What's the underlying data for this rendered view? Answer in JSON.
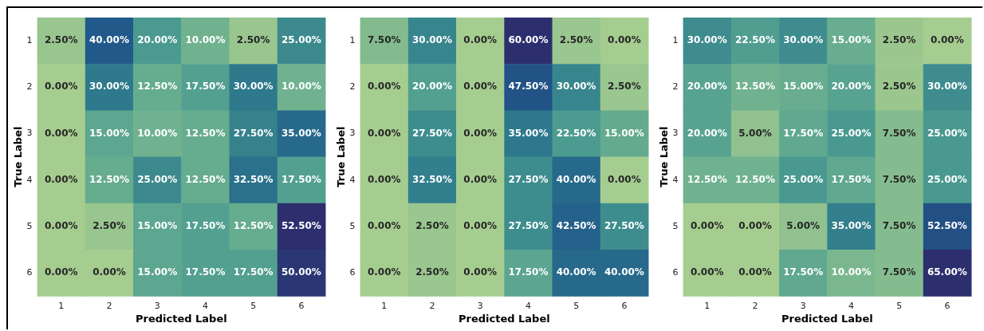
{
  "chart_data": [
    {
      "type": "heatmap",
      "xlabel": "Predicted Label",
      "ylabel": "True Label",
      "categories": [
        "1",
        "2",
        "3",
        "4",
        "5",
        "6"
      ],
      "y_categories": [
        "1",
        "2",
        "3",
        "4",
        "5",
        "6"
      ],
      "cells": [
        [
          2.5,
          40,
          20,
          10,
          2.5,
          25
        ],
        [
          0,
          30,
          12.5,
          17.5,
          30,
          10
        ],
        [
          0,
          15,
          10,
          12.5,
          27.5,
          35
        ],
        [
          0,
          12.5,
          25,
          12.5,
          32.5,
          17.5
        ],
        [
          0,
          2.5,
          15,
          17.5,
          12.5,
          52.5
        ],
        [
          0,
          0,
          15,
          17.5,
          17.5,
          50
        ]
      ],
      "cell_labels": [
        [
          "2.50%",
          "40.00%",
          "20.00%",
          "10.00%",
          "2.50%",
          "25.00%"
        ],
        [
          "0.00%",
          "30.00%",
          "12.50%",
          "17.50%",
          "30.00%",
          "10.00%"
        ],
        [
          "0.00%",
          "15.00%",
          "10.00%",
          "12.50%",
          "27.50%",
          "35.00%"
        ],
        [
          "0.00%",
          "12.50%",
          "25.00%",
          "12.50%",
          "32.50%",
          "17.50%"
        ],
        [
          "0.00%",
          "2.50%",
          "15.00%",
          "17.50%",
          "12.50%",
          "52.50%"
        ],
        [
          "0.00%",
          "0.00%",
          "15.00%",
          "17.50%",
          "17.50%",
          "50.00%"
        ]
      ]
    },
    {
      "type": "heatmap",
      "xlabel": "Predicted Label",
      "ylabel": "True Label",
      "categories": [
        "1",
        "2",
        "3",
        "4",
        "5",
        "6"
      ],
      "y_categories": [
        "1",
        "2",
        "3",
        "4",
        "5",
        "6"
      ],
      "cells": [
        [
          7.5,
          30,
          0,
          60,
          2.5,
          0
        ],
        [
          0,
          20,
          0,
          47.5,
          30,
          2.5
        ],
        [
          0,
          27.5,
          0,
          35,
          22.5,
          15
        ],
        [
          0,
          32.5,
          0,
          27.5,
          40,
          0
        ],
        [
          0,
          2.5,
          0,
          27.5,
          42.5,
          27.5
        ],
        [
          0,
          2.5,
          0,
          17.5,
          40,
          40
        ]
      ],
      "cell_labels": [
        [
          "7.50%",
          "30.00%",
          "0.00%",
          "60.00%",
          "2.50%",
          "0.00%"
        ],
        [
          "0.00%",
          "20.00%",
          "0.00%",
          "47.50%",
          "30.00%",
          "2.50%"
        ],
        [
          "0.00%",
          "27.50%",
          "0.00%",
          "35.00%",
          "22.50%",
          "15.00%"
        ],
        [
          "0.00%",
          "32.50%",
          "0.00%",
          "27.50%",
          "40.00%",
          "0.00%"
        ],
        [
          "0.00%",
          "2.50%",
          "0.00%",
          "27.50%",
          "42.50%",
          "27.50%"
        ],
        [
          "0.00%",
          "2.50%",
          "0.00%",
          "17.50%",
          "40.00%",
          "40.00%"
        ]
      ]
    },
    {
      "type": "heatmap",
      "xlabel": "Predicted Label",
      "ylabel": "True Label",
      "categories": [
        "1",
        "2",
        "3",
        "4",
        "5",
        "6"
      ],
      "y_categories": [
        "1",
        "2",
        "3",
        "4",
        "5",
        "6"
      ],
      "cells": [
        [
          30,
          22.5,
          30,
          15,
          2.5,
          0
        ],
        [
          20,
          12.5,
          15,
          20,
          2.5,
          30
        ],
        [
          20,
          5,
          17.5,
          25,
          7.5,
          25
        ],
        [
          12.5,
          12.5,
          25,
          17.5,
          7.5,
          25
        ],
        [
          0,
          0,
          5,
          35,
          7.5,
          52.5
        ],
        [
          0,
          0,
          17.5,
          10,
          7.5,
          65
        ]
      ],
      "cell_labels": [
        [
          "30.00%",
          "22.50%",
          "30.00%",
          "15.00%",
          "2.50%",
          "0.00%"
        ],
        [
          "20.00%",
          "12.50%",
          "15.00%",
          "20.00%",
          "2.50%",
          "30.00%"
        ],
        [
          "20.00%",
          "5.00%",
          "17.50%",
          "25.00%",
          "7.50%",
          "25.00%"
        ],
        [
          "12.50%",
          "12.50%",
          "25.00%",
          "17.50%",
          "7.50%",
          "25.00%"
        ],
        [
          "0.00%",
          "0.00%",
          "5.00%",
          "35.00%",
          "7.50%",
          "52.50%"
        ],
        [
          "0.00%",
          "0.00%",
          "17.50%",
          "10.00%",
          "7.50%",
          "65.00%"
        ]
      ]
    }
  ]
}
